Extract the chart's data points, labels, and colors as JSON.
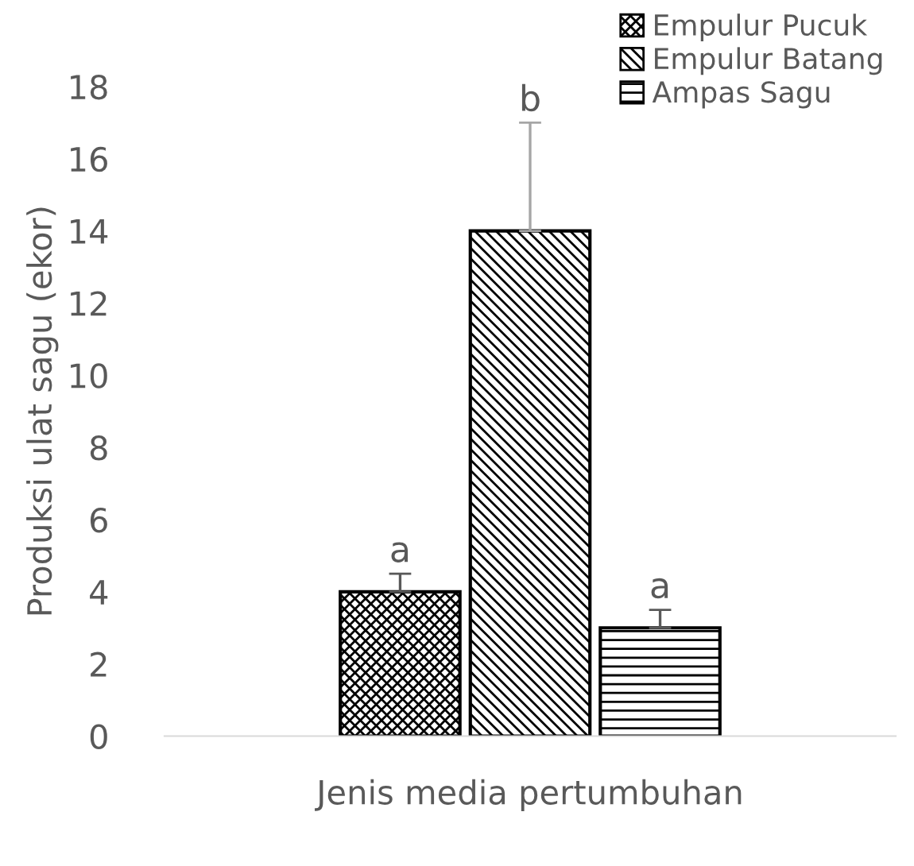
{
  "chart_data": {
    "type": "bar",
    "xlabel": "Jenis media pertumbuhan",
    "ylabel": "Produksi ulat sagu (ekor)",
    "categories": [
      null
    ],
    "series": [
      {
        "name": "Empulur Pucuk",
        "color": "#000000",
        "values": [
          4
        ],
        "errors": [
          0.5
        ]
      },
      {
        "name": "Empulur Batang",
        "color": "#000000",
        "values": [
          14
        ],
        "errors": [
          3
        ]
      },
      {
        "name": "Ampas Sagu",
        "color": "#000000",
        "values": [
          3
        ],
        "errors": [
          0.5
        ]
      }
    ],
    "annotations": [
      "a",
      "b",
      "a"
    ],
    "ylim": [
      0,
      18
    ],
    "yticks": [
      0,
      2,
      4,
      6,
      8,
      10,
      12,
      14,
      16,
      18
    ],
    "grid": false,
    "legend": "top right"
  }
}
